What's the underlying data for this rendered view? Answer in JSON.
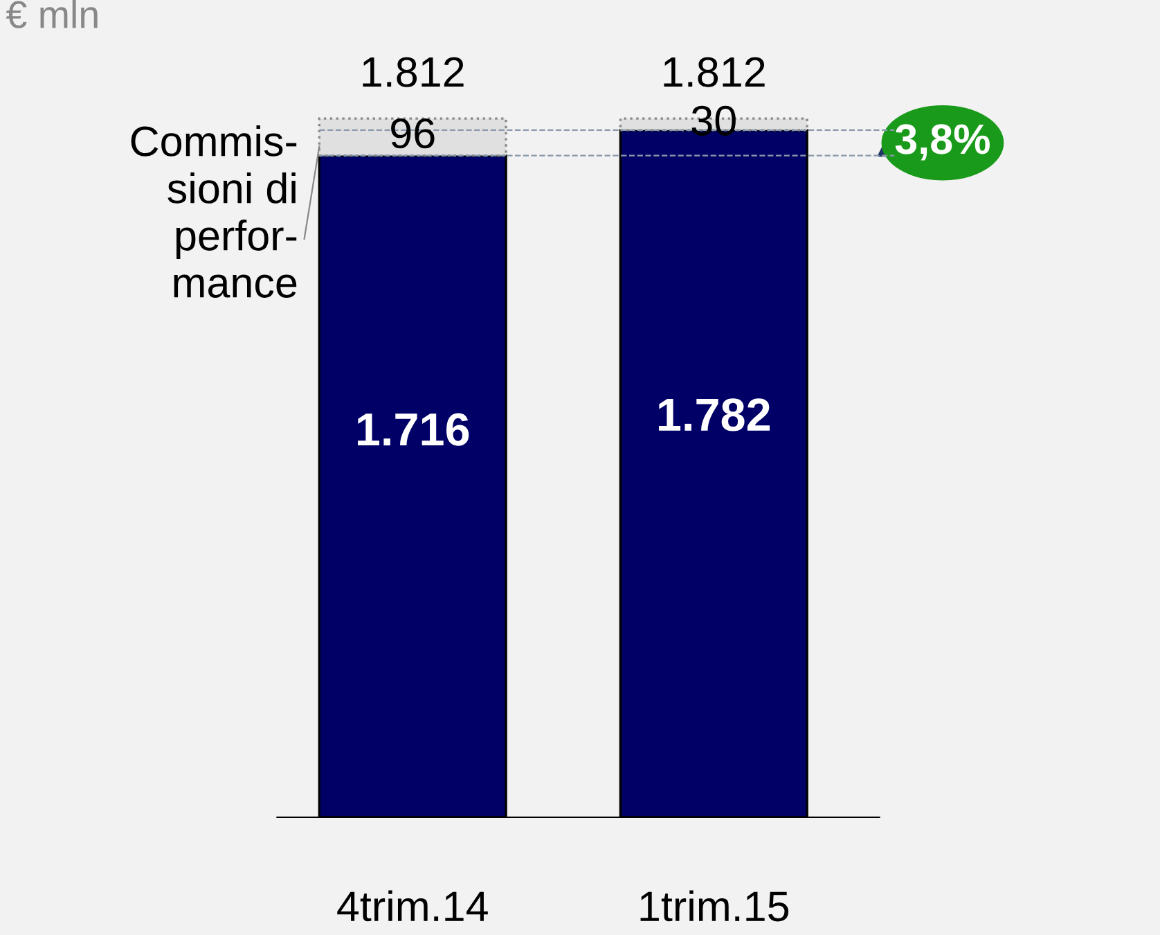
{
  "chart_data": {
    "type": "bar",
    "stacked": true,
    "title": "€ mln",
    "categories": [
      "4trim.14",
      "1trim.15"
    ],
    "series": [
      {
        "name": null,
        "color": "#000066",
        "values": [
          1716,
          1782
        ],
        "value_labels": [
          "1.716",
          "1.782"
        ]
      },
      {
        "name": null,
        "color": "#e0e0e0",
        "values": [
          96,
          30
        ],
        "value_labels": [
          "96",
          "30"
        ]
      }
    ],
    "totals": [
      "1.812",
      "1.812"
    ],
    "tick_labels": "x",
    "grid": false,
    "legend": false,
    "ref_lines": [
      {
        "axis": "y",
        "value": 1716,
        "label": null,
        "color": "#8899aa",
        "line_style": "dashed"
      },
      {
        "axis": "y",
        "value": 1782,
        "label": null,
        "color": "#8899aa",
        "line_style": "dashed"
      }
    ],
    "annotations": [
      "3,8%",
      "Commis-\nsioni di\nperfor-\nmance"
    ]
  }
}
